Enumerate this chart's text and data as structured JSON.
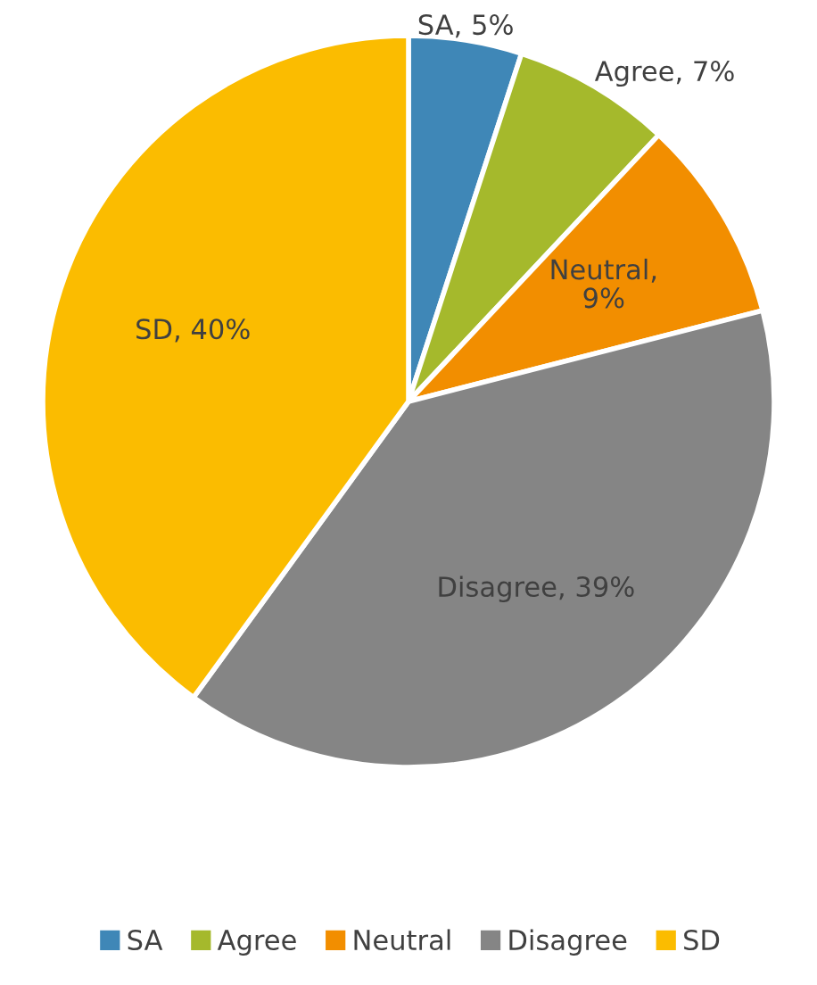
{
  "chart_data": {
    "type": "pie",
    "categories": [
      "SA",
      "Agree",
      "Neutral",
      "Disagree",
      "SD"
    ],
    "values": [
      5,
      7,
      9,
      39,
      40
    ],
    "colors": [
      "#3f87b7",
      "#a5b92c",
      "#f28e00",
      "#858585",
      "#fbbc00"
    ],
    "value_labels": [
      "SA, 5%",
      "Agree, 7%",
      "Neutral,\n9%",
      "Disagree, 39%",
      "SD, 40%"
    ],
    "legend": "bottom"
  }
}
